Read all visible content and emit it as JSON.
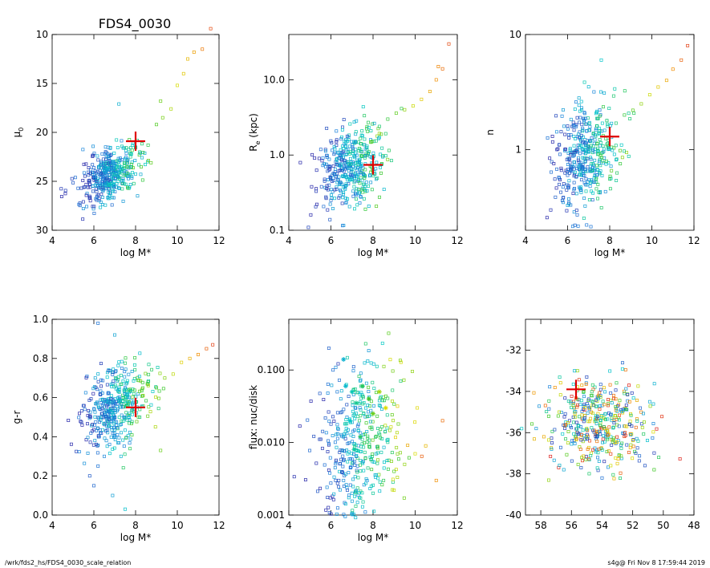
{
  "figure": {
    "title": "FDS4_0030",
    "footer_left": "/wrk/fds2_hs/FDS4_0030_scale_relation",
    "footer_right": "s4g@  Fri Nov  8 17:59:44 2019"
  },
  "chart_data": [
    {
      "id": "mu0",
      "type": "scatter",
      "xlabel": "log M*",
      "ylabel": "μ",
      "ylabel_sub": "0",
      "x_range": [
        4,
        12
      ],
      "y_range": [
        30,
        10
      ],
      "y_scale": "linear",
      "y_inverted": true,
      "x_ticks": [
        4,
        6,
        8,
        10,
        12
      ],
      "y_ticks": [
        10,
        15,
        20,
        25,
        30
      ],
      "y_tick_labels": [
        "10",
        "15",
        "20",
        "25",
        "30"
      ],
      "marker": {
        "x": 8.0,
        "y": 20.9
      },
      "cloud": {
        "center": [
          6.8,
          24.3
        ],
        "spread": [
          0.7,
          1.3
        ]
      },
      "points": [
        [
          5.4,
          25.7
        ],
        [
          5.8,
          24.9
        ],
        [
          6.0,
          23.6
        ],
        [
          6.3,
          25.2
        ],
        [
          6.6,
          24.0
        ],
        [
          6.9,
          23.1
        ],
        [
          7.2,
          24.6
        ],
        [
          7.5,
          22.7
        ],
        [
          7.8,
          22.2
        ],
        [
          8.2,
          22.0
        ],
        [
          8.6,
          21.3
        ],
        [
          9.0,
          19.2
        ],
        [
          9.3,
          18.5
        ],
        [
          9.7,
          17.6
        ],
        [
          10.0,
          15.2
        ],
        [
          10.3,
          14.0
        ],
        [
          10.5,
          12.5
        ],
        [
          10.8,
          11.8
        ],
        [
          11.2,
          11.5
        ],
        [
          11.6,
          9.4
        ],
        [
          7.2,
          17.1
        ],
        [
          9.2,
          16.8
        ]
      ]
    },
    {
      "id": "re",
      "type": "scatter",
      "xlabel": "log M*",
      "ylabel": "R",
      "ylabel_sub": "e",
      "ylabel_suffix": " (kpc)",
      "x_range": [
        4,
        12
      ],
      "y_range": [
        0.1,
        40
      ],
      "y_scale": "log",
      "x_ticks": [
        4,
        6,
        8,
        10,
        12
      ],
      "y_ticks": [
        0.1,
        1.0,
        10.0
      ],
      "y_tick_labels": [
        "0.1",
        "1.0",
        "10.0"
      ],
      "marker": {
        "x": 8.0,
        "y": 0.74
      },
      "cloud": {
        "center": [
          6.9,
          0.7
        ],
        "spread": [
          0.75,
          0.28
        ]
      },
      "points": [
        [
          5.3,
          0.33
        ],
        [
          5.7,
          0.45
        ],
        [
          6.0,
          0.25
        ],
        [
          6.2,
          0.6
        ],
        [
          6.5,
          0.9
        ],
        [
          6.8,
          1.2
        ],
        [
          7.1,
          1.5
        ],
        [
          7.5,
          1.8
        ],
        [
          7.9,
          2.1
        ],
        [
          8.3,
          2.4
        ],
        [
          8.7,
          3.0
        ],
        [
          9.1,
          3.6
        ],
        [
          9.5,
          4.0
        ],
        [
          9.9,
          4.5
        ],
        [
          10.3,
          5.5
        ],
        [
          10.7,
          7.0
        ],
        [
          11.0,
          10.0
        ],
        [
          11.3,
          14.0
        ],
        [
          11.6,
          30.0
        ],
        [
          11.1,
          15.0
        ]
      ]
    },
    {
      "id": "n",
      "type": "scatter",
      "xlabel": "log M*",
      "ylabel": "n",
      "x_range": [
        4,
        12
      ],
      "y_range": [
        0.2,
        10
      ],
      "y_scale": "log",
      "x_ticks": [
        4,
        6,
        8,
        10,
        12
      ],
      "y_ticks": [
        1,
        10
      ],
      "y_tick_labels": [
        "1",
        "10"
      ],
      "marker": {
        "x": 8.0,
        "y": 1.3
      },
      "cloud": {
        "center": [
          6.9,
          0.9
        ],
        "spread": [
          0.75,
          0.22
        ]
      },
      "points": [
        [
          5.2,
          0.3
        ],
        [
          5.6,
          0.5
        ],
        [
          6.0,
          0.6
        ],
        [
          6.3,
          0.45
        ],
        [
          6.7,
          1.0
        ],
        [
          7.1,
          1.2
        ],
        [
          7.5,
          1.4
        ],
        [
          7.9,
          1.6
        ],
        [
          8.3,
          1.7
        ],
        [
          8.7,
          2.0
        ],
        [
          9.1,
          2.2
        ],
        [
          9.5,
          2.5
        ],
        [
          9.9,
          3.0
        ],
        [
          10.3,
          3.5
        ],
        [
          10.7,
          4.0
        ],
        [
          11.0,
          5.0
        ],
        [
          11.4,
          6.0
        ],
        [
          11.7,
          8.0
        ],
        [
          7.6,
          6.0
        ]
      ]
    },
    {
      "id": "gr",
      "type": "scatter",
      "xlabel": "log M*",
      "ylabel": "g-r",
      "x_range": [
        4,
        12
      ],
      "y_range": [
        0.0,
        1.0
      ],
      "y_scale": "linear",
      "x_ticks": [
        4,
        6,
        8,
        10,
        12
      ],
      "y_ticks": [
        0.0,
        0.2,
        0.4,
        0.6,
        0.8,
        1.0
      ],
      "y_tick_labels": [
        "0.0",
        "0.2",
        "0.4",
        "0.6",
        "0.8",
        "1.0"
      ],
      "marker": {
        "x": 8.0,
        "y": 0.55
      },
      "cloud": {
        "center": [
          7.0,
          0.55
        ],
        "spread": [
          0.8,
          0.1
        ]
      },
      "points": [
        [
          5.8,
          0.2
        ],
        [
          6.0,
          0.15
        ],
        [
          6.2,
          0.25
        ],
        [
          6.5,
          0.3
        ],
        [
          6.9,
          0.1
        ],
        [
          7.3,
          0.3
        ],
        [
          7.5,
          0.03
        ],
        [
          8.2,
          0.5
        ],
        [
          8.6,
          0.68
        ],
        [
          9.0,
          0.65
        ],
        [
          9.4,
          0.7
        ],
        [
          9.8,
          0.72
        ],
        [
          10.2,
          0.78
        ],
        [
          10.6,
          0.8
        ],
        [
          11.0,
          0.82
        ],
        [
          11.4,
          0.85
        ],
        [
          11.7,
          0.87
        ],
        [
          7.0,
          0.92
        ],
        [
          6.2,
          0.98
        ],
        [
          9.2,
          0.33
        ]
      ]
    },
    {
      "id": "flux",
      "type": "scatter",
      "xlabel": "log M*",
      "ylabel": "flux: nuc/disk",
      "x_range": [
        4,
        12
      ],
      "y_range": [
        0.001,
        0.5
      ],
      "y_scale": "log",
      "x_ticks": [
        4,
        6,
        8,
        10,
        12
      ],
      "y_ticks": [
        0.001,
        0.01,
        0.1
      ],
      "y_tick_labels": [
        "0.001",
        "0.010",
        "0.100"
      ],
      "cloud": {
        "center": [
          7.3,
          0.01
        ],
        "spread": [
          1.0,
          0.55
        ]
      },
      "stars": [
        [
          6.6,
          0.14
        ],
        [
          6.7,
          0.06
        ],
        [
          7.0,
          0.05
        ],
        [
          7.2,
          0.035
        ],
        [
          7.5,
          0.06
        ],
        [
          7.8,
          0.04
        ],
        [
          8.0,
          0.025
        ],
        [
          8.3,
          0.05
        ],
        [
          6.9,
          0.02
        ],
        [
          7.4,
          0.012
        ],
        [
          8.6,
          0.03
        ],
        [
          7.1,
          0.008
        ]
      ],
      "points": [
        [
          5.9,
          0.2
        ],
        [
          6.1,
          0.1
        ],
        [
          6.3,
          0.05
        ],
        [
          6.6,
          0.003
        ],
        [
          7.0,
          0.002
        ],
        [
          7.5,
          0.0013
        ],
        [
          8.0,
          0.002
        ],
        [
          8.5,
          0.003
        ],
        [
          9.0,
          0.004
        ],
        [
          9.5,
          0.005
        ],
        [
          10.0,
          0.007
        ],
        [
          10.5,
          0.009
        ],
        [
          11.0,
          0.003
        ],
        [
          11.3,
          0.02
        ],
        [
          9.2,
          0.018
        ],
        [
          10.1,
          0.03
        ]
      ]
    },
    {
      "id": "mag",
      "type": "scatter",
      "xlabel": "",
      "ylabel": "",
      "x_range": [
        59,
        48
      ],
      "y_range": [
        -40,
        -30.5
      ],
      "y_scale": "linear",
      "x_ticks": [
        58,
        56,
        54,
        52,
        50,
        48
      ],
      "y_ticks": [
        -40,
        -38,
        -36,
        -34,
        -32
      ],
      "y_tick_labels": [
        "-40",
        "-38",
        "-36",
        "-34",
        "-32"
      ],
      "marker": {
        "x": 55.7,
        "y": -33.9
      },
      "cloud": {
        "center": [
          54.2,
          -35.6
        ],
        "spread": [
          1.6,
          1.1
        ]
      },
      "points": [
        [
          58.3,
          -35.8
        ],
        [
          57.8,
          -36.2
        ],
        [
          57.3,
          -36.8
        ],
        [
          56.5,
          -37.8
        ],
        [
          55.8,
          -33.0
        ],
        [
          55.0,
          -33.3
        ],
        [
          54.0,
          -38.2
        ],
        [
          53.0,
          -37.5
        ],
        [
          52.5,
          -36.0
        ],
        [
          51.8,
          -37.0
        ],
        [
          51.2,
          -37.6
        ],
        [
          50.6,
          -37.8
        ],
        [
          50.3,
          -37.2
        ],
        [
          52.2,
          -34.5
        ],
        [
          56.8,
          -35.0
        ]
      ]
    }
  ]
}
